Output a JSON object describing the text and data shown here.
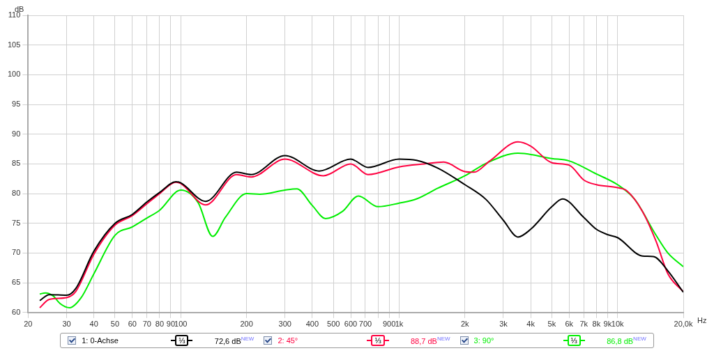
{
  "chart_data": {
    "type": "line",
    "xlabel": "Hz",
    "ylabel": "dB",
    "log": "x",
    "grid": true,
    "legend": "bottom",
    "xlim": [
      20,
      20000
    ],
    "ylim": [
      60,
      110
    ],
    "xticks": [
      20,
      30,
      40,
      50,
      60,
      70,
      80,
      90,
      100,
      200,
      300,
      400,
      500,
      600,
      700,
      {
        "value": 800,
        "label": null
      },
      900,
      {
        "value": 1000,
        "label": "1k"
      },
      {
        "value": 2000,
        "label": "2k"
      },
      {
        "value": 3000,
        "label": "3k"
      },
      {
        "value": 4000,
        "label": "4k"
      },
      {
        "value": 5000,
        "label": "5k"
      },
      {
        "value": 6000,
        "label": "6k"
      },
      {
        "value": 7000,
        "label": "7k"
      },
      {
        "value": 8000,
        "label": "8k"
      },
      {
        "value": 9000,
        "label": "9k"
      },
      {
        "value": 10000,
        "label": "10k"
      },
      {
        "value": 20000,
        "label": "20,0k"
      }
    ],
    "yticks": [
      60,
      65,
      70,
      75,
      80,
      85,
      90,
      95,
      100,
      105,
      110
    ],
    "annotations": [
      "⅓",
      "72,6 dB$^{NEW}$",
      "⅓",
      "88,7 dB$^{NEW}$",
      "⅓",
      "86,8 dB$^{NEW}$"
    ],
    "series": [
      {
        "name": "1: 0-Achse",
        "color": "#000000",
        "x": [
          22.6,
          25,
          30,
          33,
          40,
          50,
          60,
          70,
          80,
          95,
          100,
          130,
          180,
          210,
          300,
          430,
          600,
          720,
          1000,
          1200,
          1500,
          2000,
          2500,
          3000,
          3500,
          4000,
          5000,
          5600,
          7000,
          8000,
          9000,
          10000,
          13000,
          14600,
          17000,
          20000
        ],
        "values": [
          62.0,
          63.0,
          62.9,
          64.0,
          70.3,
          75.0,
          76.5,
          78.6,
          80.2,
          82.0,
          81.8,
          78.7,
          83.6,
          83.2,
          86.4,
          83.8,
          85.8,
          84.4,
          85.8,
          85.6,
          84.3,
          81.5,
          79.0,
          75.5,
          72.7,
          74.0,
          77.8,
          79.1,
          76.0,
          74.0,
          73.1,
          72.6,
          69.5,
          69.4,
          67.0,
          63.4
        ]
      },
      {
        "name": "2: 45°",
        "color": "#ff0040",
        "x": [
          22.6,
          25,
          30,
          33,
          40,
          50,
          60,
          70,
          80,
          95,
          100,
          130,
          180,
          210,
          300,
          450,
          600,
          720,
          1000,
          1300,
          1600,
          2000,
          2200,
          2600,
          3500,
          4000,
          5000,
          6000,
          7000,
          8000,
          10000,
          11000,
          13000,
          15000,
          17000,
          20000
        ],
        "values": [
          60.8,
          62.2,
          62.5,
          63.5,
          69.8,
          74.7,
          76.3,
          78.3,
          80.0,
          81.9,
          81.7,
          78.1,
          83.2,
          82.8,
          85.8,
          83.0,
          85.0,
          83.2,
          84.5,
          85.0,
          85.3,
          83.7,
          83.6,
          85.5,
          88.7,
          88.0,
          85.2,
          84.8,
          82.3,
          81.5,
          81.0,
          80.5,
          77.0,
          72.0,
          66.5,
          63.5
        ]
      },
      {
        "name": "3: 90°",
        "color": "#00ee00",
        "x": [
          22.6,
          24,
          26,
          28,
          31,
          35,
          40,
          50,
          60,
          70,
          80,
          100,
          120,
          140,
          160,
          200,
          230,
          300,
          340,
          400,
          460,
          550,
          650,
          800,
          1000,
          1200,
          1500,
          2000,
          2500,
          3500,
          5000,
          6000,
          8000,
          10000,
          12000,
          15000,
          17000,
          20000
        ],
        "values": [
          63.1,
          63.3,
          62.8,
          61.5,
          60.8,
          62.5,
          66.5,
          73.0,
          74.4,
          75.9,
          77.2,
          80.6,
          78.5,
          72.8,
          76.0,
          80.0,
          79.9,
          80.6,
          80.8,
          78.0,
          75.8,
          77.0,
          79.6,
          77.8,
          78.4,
          79.1,
          80.9,
          83.0,
          85.1,
          86.8,
          85.9,
          85.5,
          83.3,
          81.5,
          79.0,
          73.0,
          70.0,
          67.7
        ]
      }
    ]
  }
}
